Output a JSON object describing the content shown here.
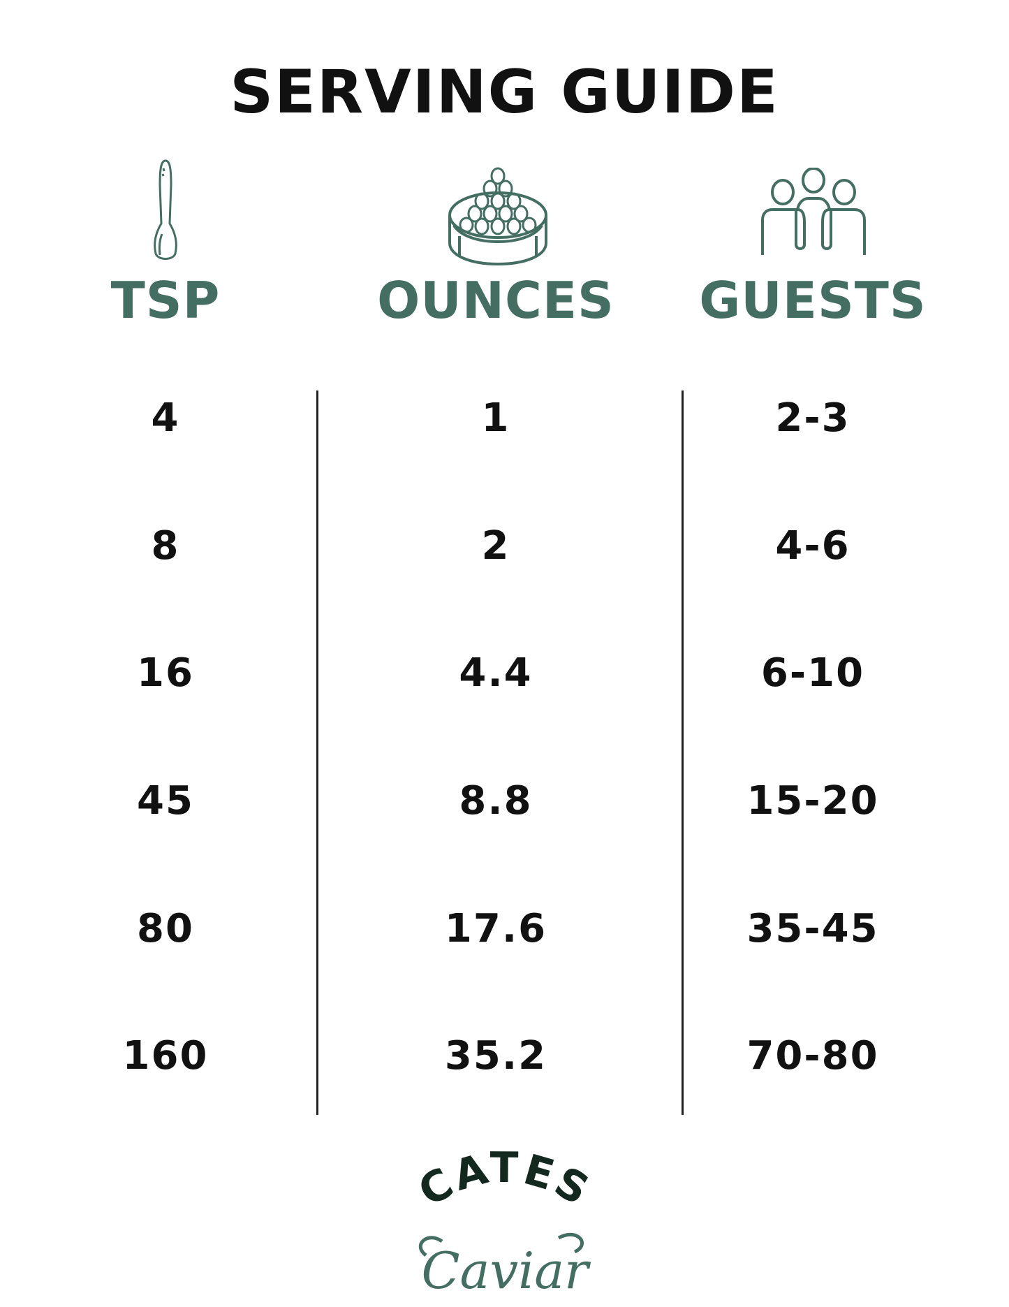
{
  "title": "SERVING GUIDE",
  "colors": {
    "accent": "#456e62",
    "text": "#111111",
    "logo_dark": "#13281f"
  },
  "columns": [
    {
      "label": "TSP",
      "icon": "spoon-icon"
    },
    {
      "label": "OUNCES",
      "icon": "caviar-tin-icon"
    },
    {
      "label": "GUESTS",
      "icon": "people-group-icon"
    }
  ],
  "rows": [
    [
      "4",
      "1",
      "2-3"
    ],
    [
      "8",
      "2",
      "4-6"
    ],
    [
      "16",
      "4.4",
      "6-10"
    ],
    [
      "45",
      "8.8",
      "15-20"
    ],
    [
      "80",
      "17.6",
      "35-45"
    ],
    [
      "160",
      "35.2",
      "70-80"
    ]
  ],
  "logo": {
    "line1": "CATES",
    "line2": "Caviar"
  }
}
